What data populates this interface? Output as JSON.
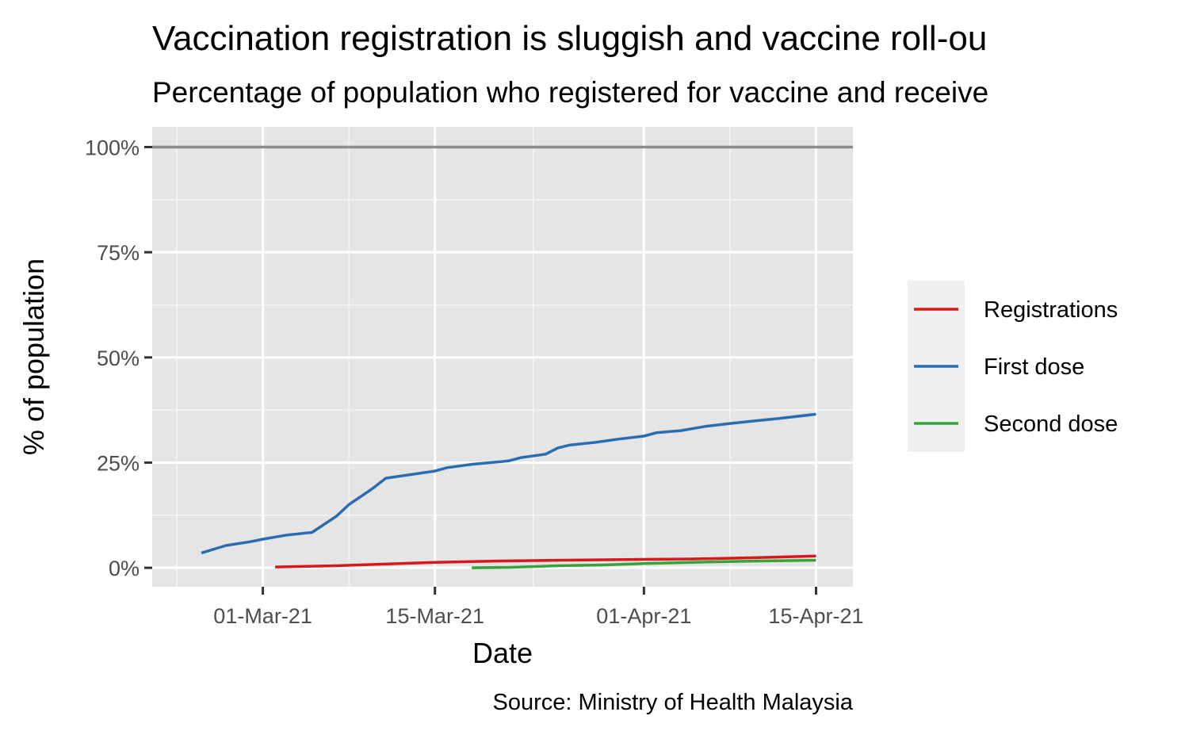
{
  "chart_data": {
    "type": "line",
    "title": "Vaccination registration is sluggish and vaccine roll-ou",
    "subtitle": "Percentage of population who registered for vaccine and receive",
    "xlabel": "Date",
    "ylabel": "% of population",
    "caption": "Source: Ministry of Health Malaysia",
    "x_range": [
      "2021-02-20",
      "2021-04-18"
    ],
    "ylim": [
      -4.5,
      104.8
    ],
    "x_ticks": [
      {
        "date": "2021-03-01",
        "label": "01-Mar-21"
      },
      {
        "date": "2021-03-15",
        "label": "15-Mar-21"
      },
      {
        "date": "2021-04-01",
        "label": "01-Apr-21"
      },
      {
        "date": "2021-04-15",
        "label": "15-Apr-21"
      }
    ],
    "x_minor_dates": [
      "2021-02-22",
      "2021-03-08",
      "2021-03-23",
      "2021-04-08"
    ],
    "y_ticks": [
      {
        "value": 0,
        "label": "0%"
      },
      {
        "value": 25,
        "label": "25%"
      },
      {
        "value": 50,
        "label": "50%"
      },
      {
        "value": 75,
        "label": "75%"
      },
      {
        "value": 100,
        "label": "100%"
      }
    ],
    "reference_line": {
      "value": 100,
      "color": "#8c8c8c"
    },
    "grid": true,
    "legend_position": "right",
    "series": [
      {
        "name": "Registrations",
        "color": "#d7191c",
        "points": [
          {
            "x": "2021-03-02",
            "y": 0.2
          },
          {
            "x": "2021-03-07",
            "y": 0.5
          },
          {
            "x": "2021-03-10",
            "y": 0.8
          },
          {
            "x": "2021-03-15",
            "y": 1.3
          },
          {
            "x": "2021-03-20",
            "y": 1.6
          },
          {
            "x": "2021-03-25",
            "y": 1.8
          },
          {
            "x": "2021-04-01",
            "y": 2.0
          },
          {
            "x": "2021-04-05",
            "y": 2.1
          },
          {
            "x": "2021-04-10",
            "y": 2.4
          },
          {
            "x": "2021-04-15",
            "y": 2.8
          }
        ]
      },
      {
        "name": "First dose",
        "color": "#2b6cb0",
        "points": [
          {
            "x": "2021-02-24",
            "y": 3.5
          },
          {
            "x": "2021-02-26",
            "y": 5.3
          },
          {
            "x": "2021-02-28",
            "y": 6.2
          },
          {
            "x": "2021-03-01",
            "y": 6.8
          },
          {
            "x": "2021-03-03",
            "y": 7.8
          },
          {
            "x": "2021-03-05",
            "y": 8.4
          },
          {
            "x": "2021-03-07",
            "y": 12.3
          },
          {
            "x": "2021-03-08",
            "y": 15.0
          },
          {
            "x": "2021-03-10",
            "y": 19.0
          },
          {
            "x": "2021-03-11",
            "y": 21.3
          },
          {
            "x": "2021-03-15",
            "y": 23.0
          },
          {
            "x": "2021-03-16",
            "y": 23.8
          },
          {
            "x": "2021-03-18",
            "y": 24.6
          },
          {
            "x": "2021-03-21",
            "y": 25.4
          },
          {
            "x": "2021-03-22",
            "y": 26.2
          },
          {
            "x": "2021-03-24",
            "y": 27.0
          },
          {
            "x": "2021-03-25",
            "y": 28.5
          },
          {
            "x": "2021-03-26",
            "y": 29.2
          },
          {
            "x": "2021-03-28",
            "y": 29.8
          },
          {
            "x": "2021-03-30",
            "y": 30.6
          },
          {
            "x": "2021-04-01",
            "y": 31.3
          },
          {
            "x": "2021-04-02",
            "y": 32.1
          },
          {
            "x": "2021-04-04",
            "y": 32.6
          },
          {
            "x": "2021-04-06",
            "y": 33.6
          },
          {
            "x": "2021-04-08",
            "y": 34.3
          },
          {
            "x": "2021-04-10",
            "y": 34.9
          },
          {
            "x": "2021-04-12",
            "y": 35.5
          },
          {
            "x": "2021-04-15",
            "y": 36.5
          }
        ]
      },
      {
        "name": "Second dose",
        "color": "#3aa23a",
        "points": [
          {
            "x": "2021-03-18",
            "y": 0.0
          },
          {
            "x": "2021-03-21",
            "y": 0.1
          },
          {
            "x": "2021-03-25",
            "y": 0.5
          },
          {
            "x": "2021-03-29",
            "y": 0.7
          },
          {
            "x": "2021-04-01",
            "y": 1.0
          },
          {
            "x": "2021-04-05",
            "y": 1.3
          },
          {
            "x": "2021-04-10",
            "y": 1.6
          },
          {
            "x": "2021-04-15",
            "y": 1.8
          }
        ]
      }
    ]
  }
}
